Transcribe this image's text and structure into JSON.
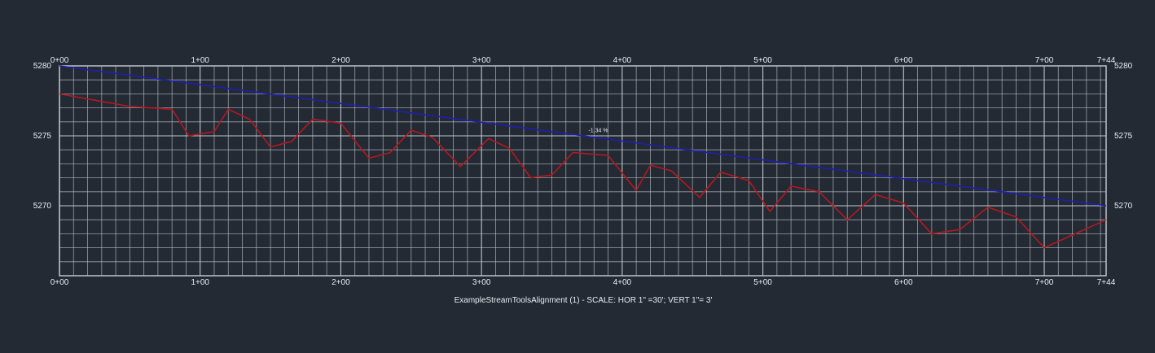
{
  "chart_data": {
    "type": "line",
    "title": "ExampleStreamToolsAlignment (1) - SCALE: HOR 1\" =30'; VERT 1\"= 3'",
    "x_unit": "ft",
    "xlim": [
      0,
      744
    ],
    "ylim": [
      5265,
      5280
    ],
    "x_ticks": [
      {
        "value": 0,
        "label": "0+00"
      },
      {
        "value": 100,
        "label": "1+00"
      },
      {
        "value": 200,
        "label": "2+00"
      },
      {
        "value": 300,
        "label": "3+00"
      },
      {
        "value": 400,
        "label": "4+00"
      },
      {
        "value": 500,
        "label": "5+00"
      },
      {
        "value": 600,
        "label": "6+00"
      },
      {
        "value": 700,
        "label": "7+00"
      },
      {
        "value": 744,
        "label": "7+44"
      }
    ],
    "y_ticks": [
      {
        "value": 5280,
        "label": "5280"
      },
      {
        "value": 5275,
        "label": "5275"
      },
      {
        "value": 5270,
        "label": "5270"
      }
    ],
    "grid": true,
    "colors": {
      "background": "#232a33",
      "grid": "#c9ced6",
      "design_line": "#1f1fae",
      "ground_line": "#b5181f",
      "text": "#e8ecf2"
    },
    "annotations": [
      {
        "text": "-1.34 %",
        "x": 376,
        "y": 5275.2
      }
    ],
    "series": [
      {
        "color": "#1f1fae",
        "x": [
          0,
          744
        ],
        "y": [
          5280.0,
          5270.0
        ]
      },
      {
        "color": "#b5181f",
        "x": [
          0,
          50,
          80,
          92,
          110,
          120,
          135,
          150,
          165,
          180,
          200,
          220,
          235,
          250,
          265,
          285,
          305,
          320,
          335,
          350,
          365,
          390,
          410,
          420,
          435,
          455,
          470,
          490,
          505,
          520,
          540,
          560,
          580,
          600,
          620,
          640,
          660,
          680,
          700,
          744
        ],
        "y": [
          5278.0,
          5277.1,
          5276.9,
          5275.0,
          5275.3,
          5276.9,
          5276.2,
          5274.2,
          5274.6,
          5276.2,
          5275.9,
          5273.4,
          5273.8,
          5275.4,
          5274.9,
          5272.8,
          5274.8,
          5274.1,
          5272.0,
          5272.2,
          5273.8,
          5273.6,
          5271.1,
          5272.9,
          5272.5,
          5270.6,
          5272.4,
          5271.8,
          5269.6,
          5271.4,
          5271.0,
          5269.0,
          5270.8,
          5270.2,
          5268.0,
          5268.3,
          5269.9,
          5269.2,
          5267.0,
          5269.0
        ]
      }
    ]
  }
}
